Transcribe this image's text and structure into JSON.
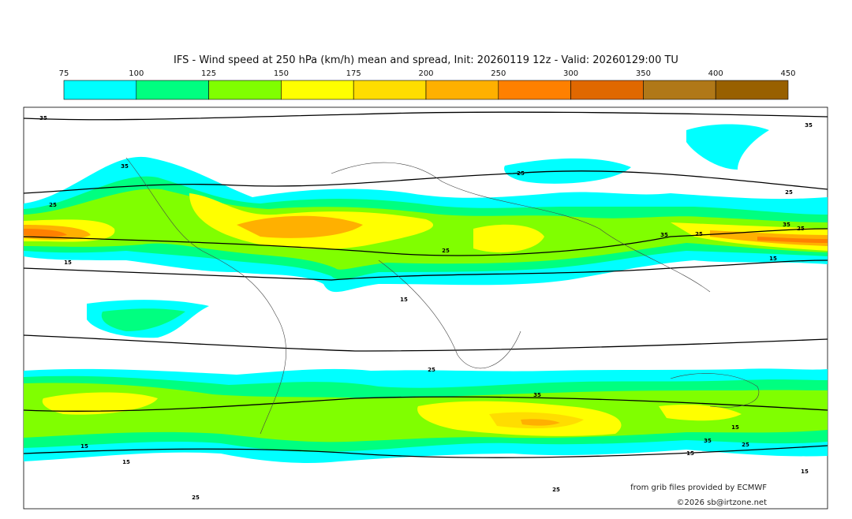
{
  "chart_data": {
    "type": "heatmap",
    "title": "IFS - Wind speed at 250 hPa (km/h) mean and spread, Init: 20260119 12z - Valid: 20260129:00 TU",
    "colorbar": {
      "unit": "km/h",
      "ticks": [
        "75",
        "100",
        "125",
        "150",
        "175",
        "200",
        "250",
        "300",
        "350",
        "400",
        "450"
      ],
      "colors": [
        "#00ffff",
        "#00ff80",
        "#80ff00",
        "#ffff00",
        "#ffdd00",
        "#ffb000",
        "#ff8000",
        "#e06800",
        "#b07818",
        "#986000"
      ]
    },
    "contour_labels": [
      "35",
      "35",
      "35",
      "25",
      "25",
      "25",
      "25",
      "25",
      "25",
      "15",
      "15",
      "15",
      "15",
      "35",
      "35",
      "25",
      "35",
      "15",
      "15",
      "15",
      "25",
      "25",
      "35",
      "25",
      "15"
    ],
    "credits": [
      "from grib files provided by ECMWF",
      "©2026 sb@irtzone.net"
    ]
  }
}
